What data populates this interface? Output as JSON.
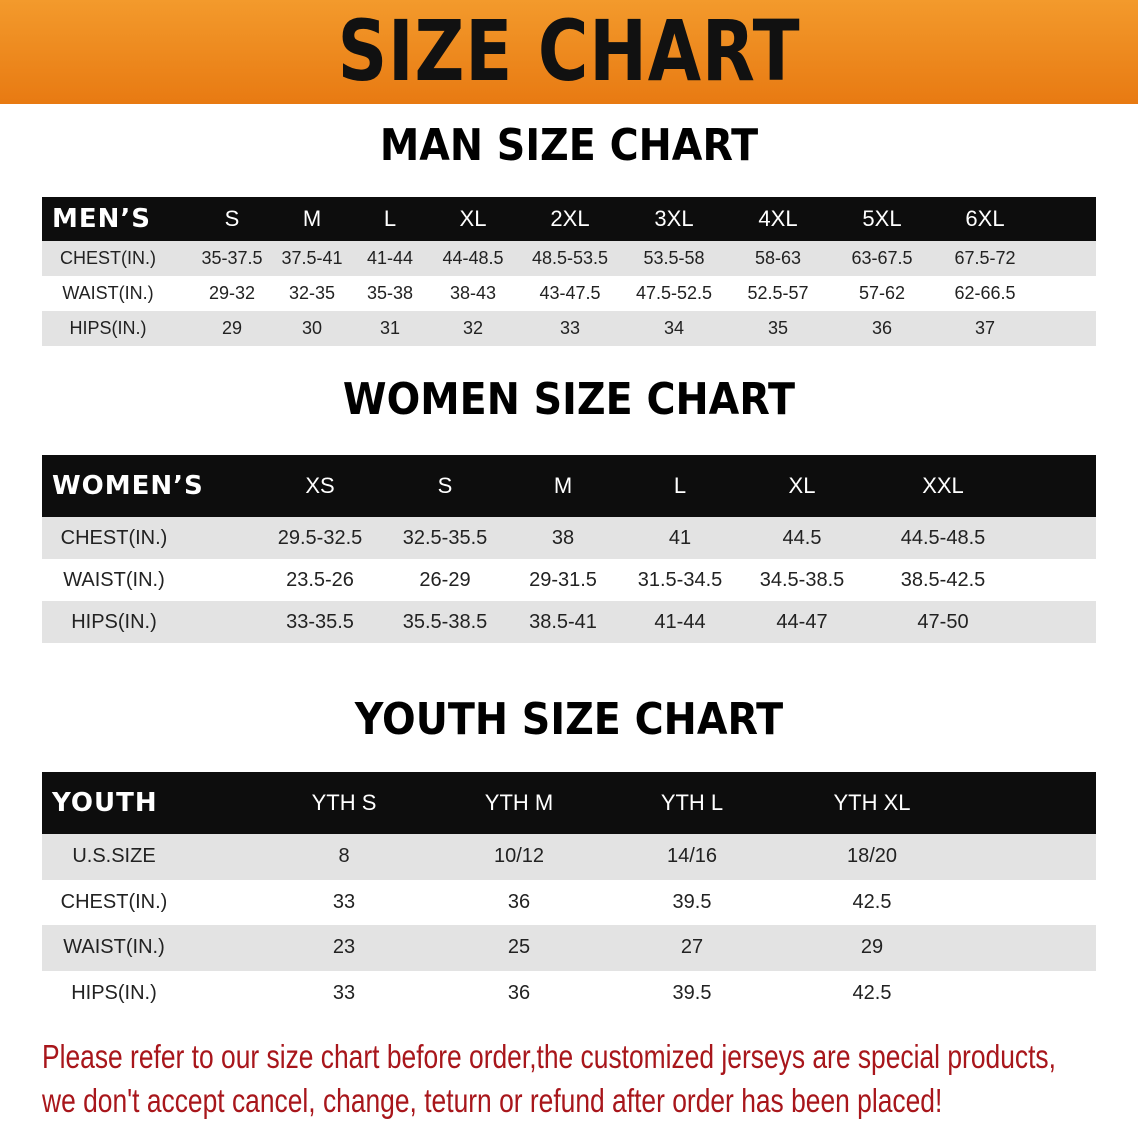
{
  "banner": {
    "title": "SIZE CHART"
  },
  "men": {
    "title": "MAN SIZE CHART",
    "header": "MEN’S",
    "sizes": [
      "S",
      "M",
      "L",
      "XL",
      "2XL",
      "3XL",
      "4XL",
      "5XL",
      "6XL"
    ],
    "rows": [
      {
        "label": "CHEST(IN.)",
        "values": [
          "35-37.5",
          "37.5-41",
          "41-44",
          "44-48.5",
          "48.5-53.5",
          "53.5-58",
          "58-63",
          "63-67.5",
          "67.5-72"
        ]
      },
      {
        "label": "WAIST(IN.)",
        "values": [
          "29-32",
          "32-35",
          "35-38",
          "38-43",
          "43-47.5",
          "47.5-52.5",
          "52.5-57",
          "57-62",
          "62-66.5"
        ]
      },
      {
        "label": "HIPS(IN.)",
        "values": [
          "29",
          "30",
          "31",
          "32",
          "33",
          "34",
          "35",
          "36",
          "37"
        ]
      }
    ]
  },
  "women": {
    "title": "WOMEN SIZE CHART",
    "header": "WOMEN’S",
    "sizes": [
      "XS",
      "S",
      "M",
      "L",
      "XL",
      "XXL"
    ],
    "rows": [
      {
        "label": "CHEST(IN.)",
        "values": [
          "29.5-32.5",
          "32.5-35.5",
          "38",
          "41",
          "44.5",
          "44.5-48.5"
        ]
      },
      {
        "label": "WAIST(IN.)",
        "values": [
          "23.5-26",
          "26-29",
          "29-31.5",
          "31.5-34.5",
          "34.5-38.5",
          "38.5-42.5"
        ]
      },
      {
        "label": "HIPS(IN.)",
        "values": [
          "33-35.5",
          "35.5-38.5",
          "38.5-41",
          "41-44",
          "44-47",
          "47-50"
        ]
      }
    ]
  },
  "youth": {
    "title": "YOUTH SIZE CHART",
    "header": "YOUTH",
    "sizes": [
      "YTH S",
      "YTH M",
      "YTH L",
      "YTH XL"
    ],
    "rows": [
      {
        "label": "U.S.SIZE",
        "values": [
          "8",
          "10/12",
          "14/16",
          "18/20"
        ]
      },
      {
        "label": "CHEST(IN.)",
        "values": [
          "33",
          "36",
          "39.5",
          "42.5"
        ]
      },
      {
        "label": "WAIST(IN.)",
        "values": [
          "23",
          "25",
          "27",
          "29"
        ]
      },
      {
        "label": "HIPS(IN.)",
        "values": [
          "33",
          "36",
          "39.5",
          "42.5"
        ]
      }
    ]
  },
  "notice": {
    "line1": "Please refer to our size chart before order,the customized jerseys are special products,",
    "line2": "we don't accept cancel, change, teturn or refund after order has been placed!"
  },
  "colors": {
    "banner": "#ee8a1e",
    "header_row": "#0d0d0d",
    "stripe": "#e3e3e3",
    "notice": "#a8161b"
  }
}
